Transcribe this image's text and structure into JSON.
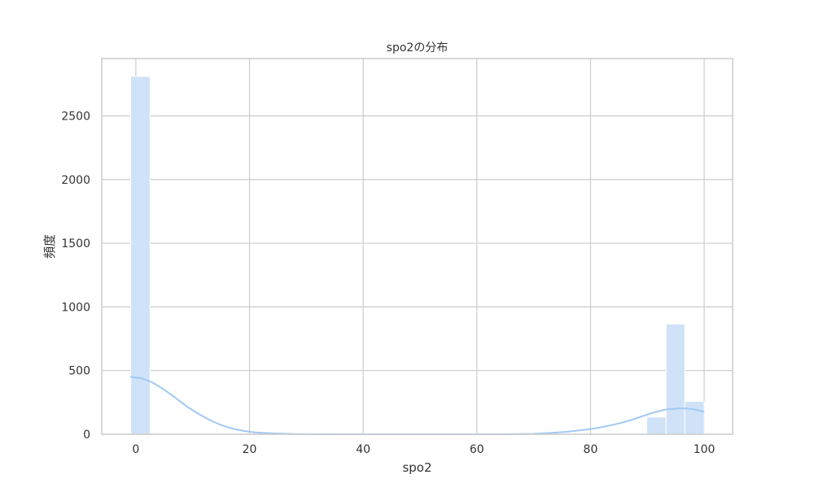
{
  "chart_data": {
    "type": "bar",
    "title": "spo2の分布",
    "xlabel": "spo2",
    "ylabel": "頻度",
    "xlim": [
      -6,
      105
    ],
    "ylim": [
      0,
      2950
    ],
    "grid": true,
    "x_ticks": [
      0,
      20,
      40,
      60,
      80,
      100
    ],
    "y_ticks": [
      0,
      500,
      1000,
      1500,
      2000,
      2500
    ],
    "bins": [
      {
        "x0": -0.9,
        "x1": 2.5,
        "value": 2810
      },
      {
        "x0": 89.9,
        "x1": 93.3,
        "value": 135
      },
      {
        "x0": 93.3,
        "x1": 96.6,
        "value": 865
      },
      {
        "x0": 96.6,
        "x1": 100.0,
        "value": 258
      }
    ],
    "kde": {
      "x": [
        -1,
        1,
        3,
        5,
        7,
        9,
        11,
        13,
        15,
        17,
        19,
        21,
        24,
        28,
        35,
        45,
        55,
        65,
        70,
        73,
        76,
        79,
        81,
        83,
        85,
        87,
        89,
        91,
        93,
        95,
        96,
        97,
        98,
        99,
        100
      ],
      "y": [
        452,
        440,
        405,
        350,
        285,
        218,
        160,
        112,
        72,
        44,
        26,
        15,
        7,
        2,
        0,
        0,
        0,
        0,
        3,
        10,
        20,
        35,
        48,
        65,
        85,
        110,
        140,
        170,
        192,
        202,
        204,
        202,
        197,
        188,
        176
      ]
    },
    "colors": {
      "bar": "#cfe2f7",
      "kde": "#a1c9f4",
      "grid": "#cccccc",
      "axis": "#cccccc"
    }
  }
}
